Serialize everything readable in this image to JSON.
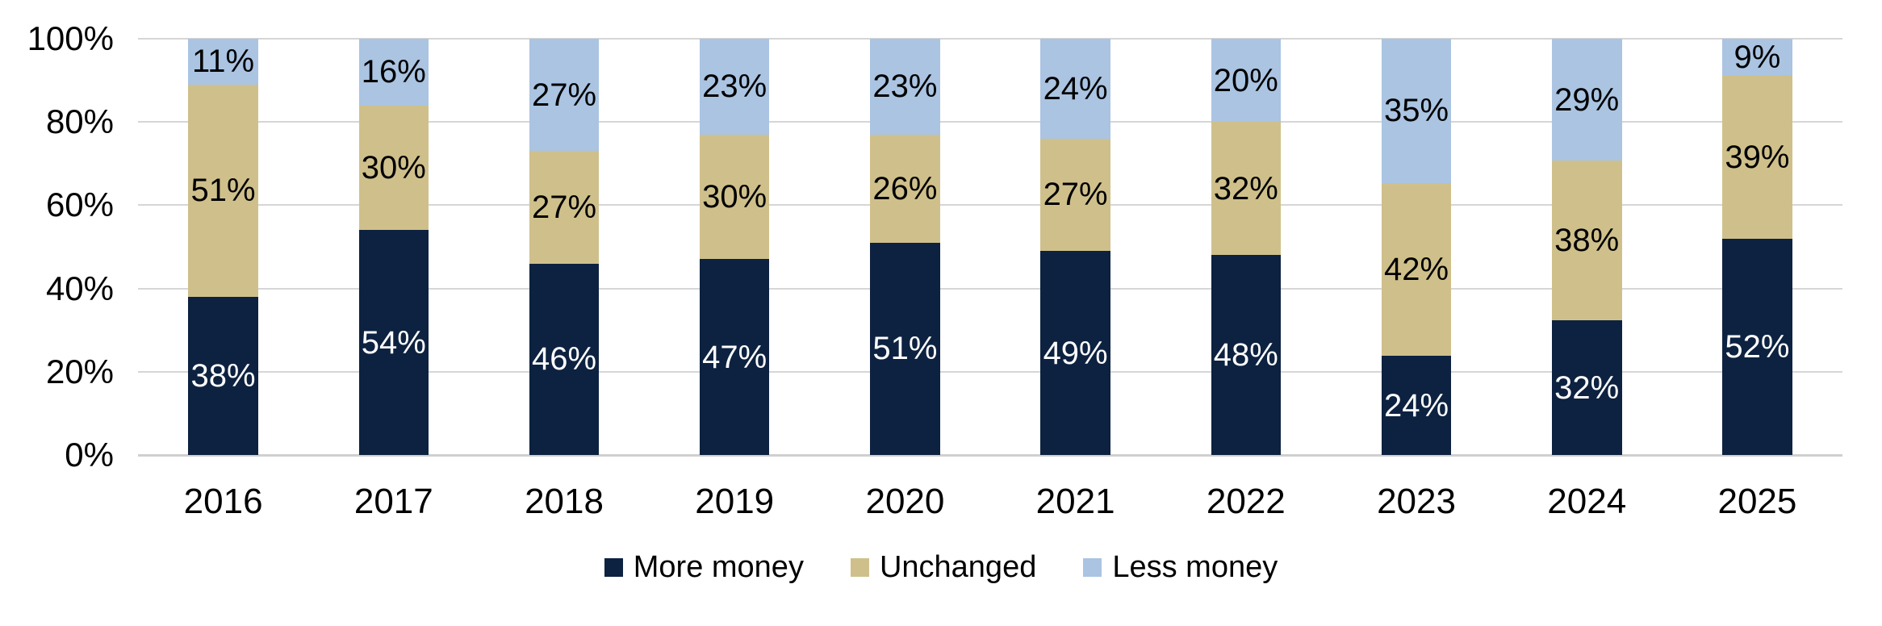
{
  "chart_data": {
    "type": "bar",
    "stacked": true,
    "stacked_100_percent": true,
    "title": "",
    "xlabel": "",
    "ylabel": "",
    "categories": [
      "2016",
      "2017",
      "2018",
      "2019",
      "2020",
      "2021",
      "2022",
      "2023",
      "2024",
      "2025"
    ],
    "series": [
      {
        "name": "More money",
        "color": "#0d2240",
        "label_color": "#ffffff",
        "values": [
          38,
          54,
          46,
          47,
          51,
          49,
          48,
          24,
          32,
          52
        ]
      },
      {
        "name": "Unchanged",
        "color": "#cfc08b",
        "label_color": "#000000",
        "values": [
          51,
          30,
          27,
          30,
          26,
          27,
          32,
          42,
          38,
          39
        ]
      },
      {
        "name": "Less money",
        "color": "#aac4e2",
        "label_color": "#000000",
        "values": [
          11,
          16,
          27,
          23,
          23,
          24,
          20,
          35,
          29,
          9
        ]
      }
    ],
    "data_label_suffix": "%",
    "y_axis": {
      "min": 0,
      "max": 100,
      "tick_step": 20,
      "ticks": [
        "0%",
        "20%",
        "40%",
        "60%",
        "80%",
        "100%"
      ],
      "grid": true
    },
    "legend": {
      "position": "bottom",
      "items": [
        "More money",
        "Unchanged",
        "Less money"
      ]
    },
    "colors": {
      "background": "#ffffff",
      "gridline": "#d6d6d6",
      "baseline": "#cfcfcf",
      "axis_text": "#000000"
    }
  }
}
